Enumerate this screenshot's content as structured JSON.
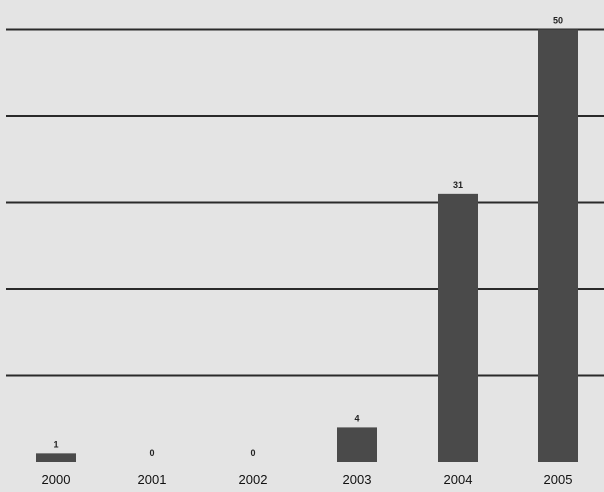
{
  "chart_data": {
    "type": "bar",
    "categories": [
      "2000",
      "2001",
      "2002",
      "2003",
      "2004",
      "2005"
    ],
    "values": [
      1,
      0,
      0,
      4,
      31,
      50
    ],
    "data_labels": [
      "1",
      "0",
      "0",
      "4",
      "31",
      "50"
    ],
    "ylim": [
      0,
      52.6
    ],
    "grid": true,
    "legend": "none",
    "colors": {
      "bar": "#4a4a4a",
      "grid": "#2a2a2a",
      "background": "#e4e4e4"
    }
  }
}
